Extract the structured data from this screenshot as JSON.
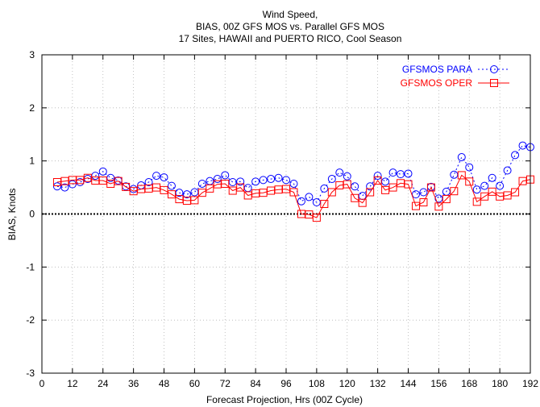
{
  "chart_data": {
    "type": "line",
    "title": [
      "Wind Speed,",
      "BIAS, 00Z GFS MOS vs. Parallel GFS MOS",
      "17 Sites, HAWAII and PUERTO RICO, Cool Season"
    ],
    "xlabel": "Forecast Projection, Hrs (00Z Cycle)",
    "ylabel": "BIAS, Knots",
    "xlim": [
      0,
      192
    ],
    "ylim": [
      -3,
      3
    ],
    "xticks": [
      0,
      12,
      24,
      36,
      48,
      60,
      72,
      84,
      96,
      108,
      120,
      132,
      144,
      156,
      168,
      180,
      192
    ],
    "yticks": [
      -3,
      -2,
      -1,
      0,
      1,
      2,
      3
    ],
    "grid": true,
    "zero_line": true,
    "legend_position": "top-right",
    "x": [
      6,
      9,
      12,
      15,
      18,
      21,
      24,
      27,
      30,
      33,
      36,
      39,
      42,
      45,
      48,
      51,
      54,
      57,
      60,
      63,
      66,
      69,
      72,
      75,
      78,
      81,
      84,
      87,
      90,
      93,
      96,
      99,
      102,
      105,
      108,
      111,
      114,
      117,
      120,
      123,
      126,
      129,
      132,
      135,
      138,
      141,
      144,
      147,
      150,
      153,
      156,
      159,
      162,
      165,
      168,
      171,
      174,
      177,
      180,
      183,
      186,
      189,
      192
    ],
    "series": [
      {
        "name": "GFSMOS PARA",
        "color": "#0000ff",
        "marker": "circle",
        "line": "dotted",
        "values": [
          0.52,
          0.5,
          0.56,
          0.6,
          0.66,
          0.72,
          0.8,
          0.68,
          0.63,
          0.52,
          0.47,
          0.54,
          0.6,
          0.72,
          0.69,
          0.53,
          0.4,
          0.37,
          0.41,
          0.57,
          0.62,
          0.66,
          0.73,
          0.6,
          0.61,
          0.49,
          0.61,
          0.64,
          0.66,
          0.68,
          0.64,
          0.57,
          0.24,
          0.32,
          0.22,
          0.48,
          0.66,
          0.78,
          0.71,
          0.52,
          0.34,
          0.52,
          0.72,
          0.61,
          0.78,
          0.75,
          0.76,
          0.37,
          0.41,
          0.51,
          0.29,
          0.42,
          0.74,
          1.07,
          0.88,
          0.46,
          0.53,
          0.68,
          0.53,
          0.82,
          1.11,
          1.29,
          1.26
        ]
      },
      {
        "name": "GFSMOS OPER",
        "color": "#ff0000",
        "marker": "square",
        "line": "solid",
        "values": [
          0.6,
          0.62,
          0.64,
          0.64,
          0.68,
          0.63,
          0.63,
          0.57,
          0.62,
          0.51,
          0.43,
          0.47,
          0.48,
          0.5,
          0.45,
          0.37,
          0.28,
          0.25,
          0.26,
          0.4,
          0.48,
          0.56,
          0.57,
          0.44,
          0.5,
          0.35,
          0.39,
          0.4,
          0.44,
          0.46,
          0.47,
          0.41,
          0.0,
          -0.01,
          -0.07,
          0.19,
          0.41,
          0.54,
          0.56,
          0.3,
          0.21,
          0.41,
          0.63,
          0.45,
          0.5,
          0.58,
          0.56,
          0.15,
          0.22,
          0.5,
          0.14,
          0.28,
          0.43,
          0.73,
          0.61,
          0.23,
          0.33,
          0.42,
          0.33,
          0.35,
          0.41,
          0.62,
          0.65
        ]
      }
    ]
  }
}
